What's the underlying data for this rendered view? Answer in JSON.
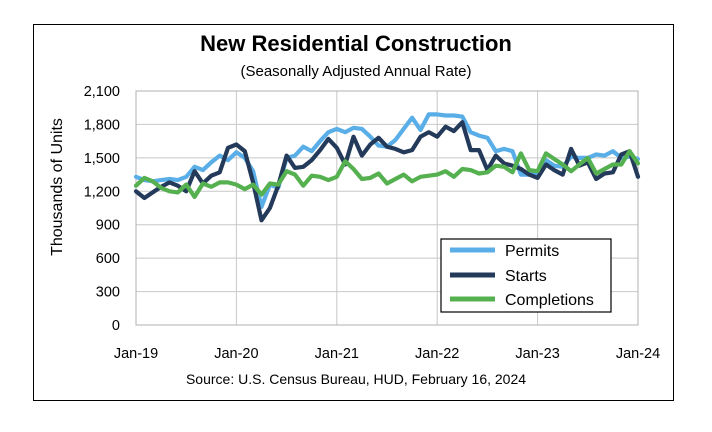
{
  "chart_data": {
    "type": "line",
    "title": "New Residential Construction",
    "subtitle": "(Seasonally Adjusted Annual Rate)",
    "source": "Source:  U.S. Census Bureau, HUD, February 16, 2024",
    "ylabel": "Thousands of Units",
    "xlabel": "",
    "ylim": [
      0,
      2100
    ],
    "yticks": [
      "0",
      "300",
      "600",
      "900",
      "1,200",
      "1,500",
      "1,800",
      "2,100"
    ],
    "ytick_values": [
      0,
      300,
      600,
      900,
      1200,
      1500,
      1800,
      2100
    ],
    "xticks": [
      "Jan-19",
      "Jan-20",
      "Jan-21",
      "Jan-22",
      "Jan-23",
      "Jan-24"
    ],
    "xtick_index": [
      0,
      12,
      24,
      36,
      48,
      60
    ],
    "grid": true,
    "legend_position": "bottom-right",
    "series": [
      {
        "name": "Permits",
        "color": "#5aaee8",
        "values": [
          1330,
          1300,
          1290,
          1300,
          1310,
          1300,
          1330,
          1420,
          1390,
          1460,
          1520,
          1480,
          1550,
          1500,
          1380,
          1060,
          1260,
          1230,
          1500,
          1520,
          1600,
          1560,
          1650,
          1730,
          1760,
          1730,
          1770,
          1760,
          1690,
          1610,
          1600,
          1660,
          1760,
          1860,
          1750,
          1890,
          1890,
          1880,
          1880,
          1870,
          1730,
          1700,
          1680,
          1560,
          1580,
          1560,
          1350,
          1350,
          1360,
          1480,
          1430,
          1420,
          1510,
          1500,
          1500,
          1530,
          1520,
          1560,
          1500,
          1510,
          1490
        ]
      },
      {
        "name": "Starts",
        "color": "#243a5a",
        "values": [
          1200,
          1140,
          1190,
          1240,
          1280,
          1250,
          1200,
          1380,
          1270,
          1340,
          1370,
          1590,
          1620,
          1560,
          1280,
          940,
          1050,
          1250,
          1520,
          1410,
          1420,
          1480,
          1570,
          1670,
          1590,
          1440,
          1690,
          1520,
          1620,
          1680,
          1600,
          1580,
          1550,
          1570,
          1690,
          1730,
          1690,
          1780,
          1740,
          1820,
          1570,
          1570,
          1390,
          1520,
          1450,
          1430,
          1400,
          1350,
          1320,
          1440,
          1390,
          1350,
          1580,
          1430,
          1460,
          1310,
          1360,
          1370,
          1530,
          1560,
          1330
        ]
      },
      {
        "name": "Completions",
        "color": "#55b04f",
        "values": [
          1250,
          1320,
          1290,
          1230,
          1200,
          1190,
          1260,
          1150,
          1270,
          1240,
          1280,
          1280,
          1260,
          1220,
          1260,
          1170,
          1270,
          1260,
          1380,
          1350,
          1250,
          1340,
          1330,
          1300,
          1330,
          1470,
          1400,
          1310,
          1320,
          1360,
          1270,
          1310,
          1350,
          1290,
          1330,
          1340,
          1350,
          1380,
          1330,
          1400,
          1390,
          1360,
          1370,
          1430,
          1420,
          1370,
          1540,
          1390,
          1380,
          1540,
          1490,
          1440,
          1380,
          1440,
          1500,
          1360,
          1400,
          1440,
          1440,
          1560,
          1450
        ]
      }
    ]
  }
}
